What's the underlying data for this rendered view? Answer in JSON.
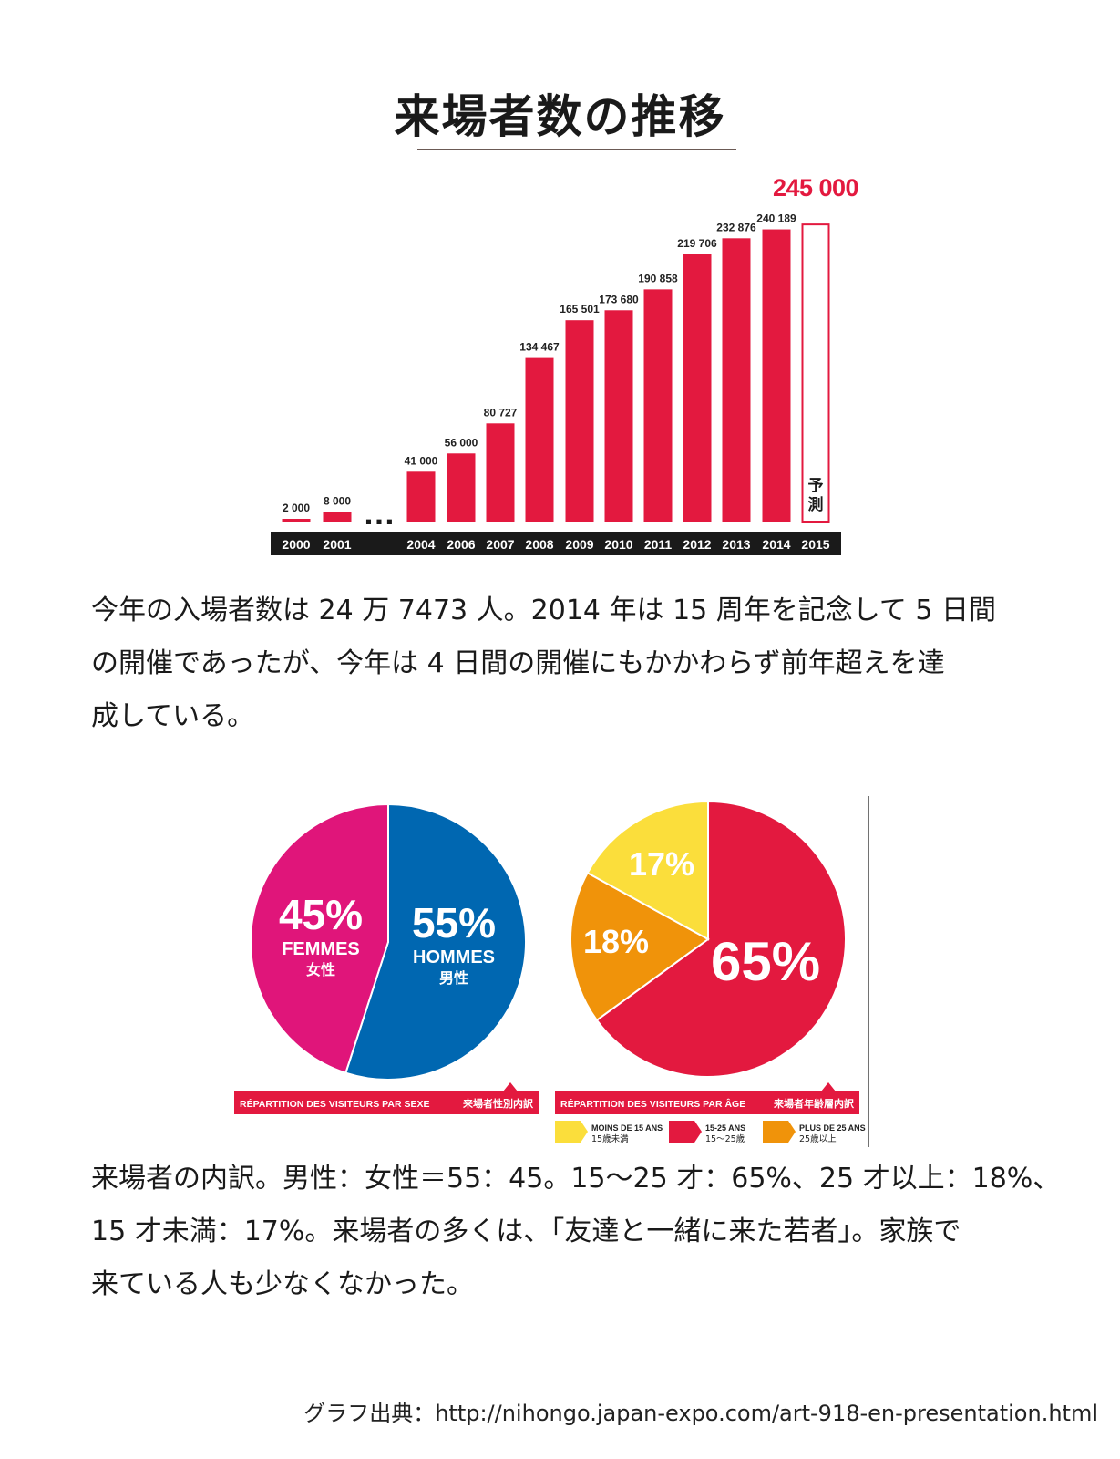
{
  "page": {
    "title": "来場者数の推移",
    "paragraph1": [
      "今年の入場者数は 24 万 7473 人。2014 年は 15 周年を記念して 5 日間",
      "の開催であったが、今年は 4 日間の開催にもかかわらず前年超えを達",
      "成している。"
    ],
    "paragraph2": [
      "来場者の内訳。男性：女性＝55：45。15〜25 才：65%、25 才以上：18%、",
      "15 才未満：17%。来場者の多くは、「友達と一緒に来た若者」。家族で",
      "来ている人も少なくなかった。"
    ],
    "source": "グラフ出典：http://nihongo.japan-expo.com/art-918-en-presentation.html"
  },
  "colors": {
    "bar": "#e3193f",
    "axis_band": "#1a1a1a",
    "female": "#e0157a",
    "male": "#0067b1",
    "under15": "#fbde3b",
    "age15_25": "#e3193f",
    "over25": "#f0930a",
    "footer_band": "#e3193f"
  },
  "chart_data": [
    {
      "type": "bar",
      "title": "",
      "categories": [
        "2000",
        "2001",
        "…",
        "2004",
        "2006",
        "2007",
        "2008",
        "2009",
        "2010",
        "2011",
        "2012",
        "2013",
        "2014",
        "2015"
      ],
      "values": [
        2000,
        8000,
        null,
        41000,
        56000,
        80727,
        134467,
        165501,
        173680,
        190858,
        219706,
        232876,
        240189,
        245000
      ],
      "value_labels": [
        "2 000",
        "8 000",
        "",
        "41 000",
        "56 000",
        "80 727",
        "134 467",
        "165 501",
        "173 680",
        "190 858",
        "219 706",
        "232 876",
        "240 189",
        "245 000"
      ],
      "forecast_label": "予測",
      "ellipsis": "…",
      "ylim": [
        0,
        250000
      ],
      "grid": false
    },
    {
      "type": "pie",
      "title": "RÉPARTITION DES VISITEURS PAR SEXE",
      "title_ja": "来場者性別内訳",
      "slices": [
        {
          "value": 55,
          "label": "55%",
          "name": "HOMMES",
          "name_ja": "男性",
          "color": "#0067b1"
        },
        {
          "value": 45,
          "label": "45%",
          "name": "FEMMES",
          "name_ja": "女性",
          "color": "#e0157a"
        }
      ]
    },
    {
      "type": "pie",
      "title": "RÉPARTITION DES VISITEURS PAR ÂGE",
      "title_ja": "来場者年齢層内訳",
      "slices": [
        {
          "value": 65,
          "label": "65%",
          "color": "#e3193f"
        },
        {
          "value": 18,
          "label": "18%",
          "color": "#f0930a"
        },
        {
          "value": 17,
          "label": "17%",
          "color": "#fbde3b"
        }
      ],
      "legend": [
        {
          "label": "MOINS DE 15 ANS",
          "label_ja": "15歳未満",
          "color": "#fbde3b"
        },
        {
          "label": "15-25 ANS",
          "label_ja": "15〜25歳",
          "color": "#e3193f"
        },
        {
          "label": "PLUS DE 25 ANS",
          "label_ja": "25歳以上",
          "color": "#f0930a"
        }
      ]
    }
  ]
}
